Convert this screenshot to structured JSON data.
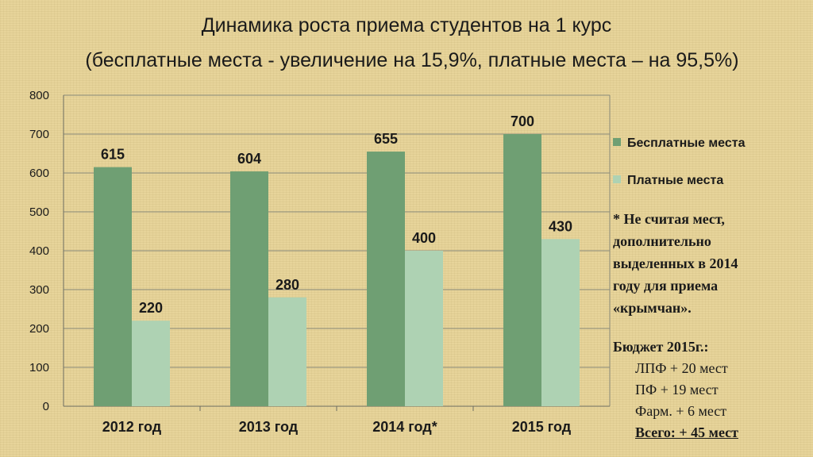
{
  "title": "Динамика роста приема студентов на 1 курс",
  "subtitle": "(бесплатные места - увеличение на 15,9%,  платные места – на 95,5%)",
  "colors": {
    "series1": "#6f9f73",
    "series2": "#aed2b3",
    "grid": "#8a8a7a"
  },
  "chart_data": {
    "type": "bar",
    "categories": [
      "2012 год",
      "2013 год",
      "2014 год*",
      "2015 год"
    ],
    "series": [
      {
        "name": "Бесплатные места",
        "values": [
          615,
          604,
          655,
          700
        ]
      },
      {
        "name": "Платные места",
        "values": [
          220,
          280,
          400,
          430
        ]
      }
    ],
    "ylim": [
      0,
      800
    ],
    "yticks": [
      0,
      100,
      200,
      300,
      400,
      500,
      600,
      700,
      800
    ],
    "grid": true,
    "legend": "right"
  },
  "note": {
    "lines": [
      "* Не считая мест,",
      "дополнительно",
      "выделенных в 2014",
      "году для приема",
      "«крымчан»."
    ]
  },
  "budget": {
    "heading": "Бюджет 2015г.:",
    "items": [
      "ЛПФ + 20 мест",
      "ПФ + 19 мест",
      "Фарм. + 6 мест"
    ],
    "total": "Всего: + 45 мест"
  }
}
